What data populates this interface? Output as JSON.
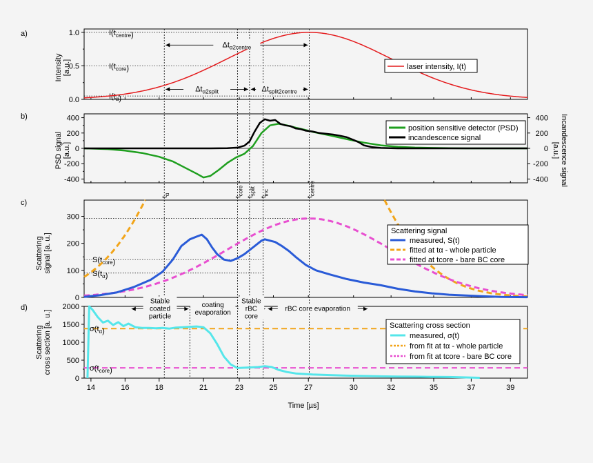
{
  "figure": {
    "background": "#f4f4f4",
    "x_axis": {
      "label": "Time [µs]",
      "range": [
        13.6,
        39.6
      ],
      "ticks": [
        "14",
        "16",
        "18",
        "21",
        "23",
        "25",
        "27",
        "30",
        "32",
        "35",
        "37",
        "39"
      ],
      "tick_values": [
        14,
        16,
        18,
        20.6,
        22.7,
        24.7,
        26.75,
        29.4,
        31.6,
        34.1,
        36.3,
        38.6
      ]
    }
  },
  "chart_data": [
    {
      "panel_letter": "a)",
      "type": "line",
      "ylabel": [
        "Intensity",
        "[a.u.]"
      ],
      "ylim": [
        0,
        1.05
      ],
      "yticks": [
        "0.0",
        "0.5",
        "1.0"
      ],
      "ytick_values": [
        0,
        0.5,
        1.0
      ],
      "legend": "laser intensity,  I(t)",
      "colors": {
        "laser": "#e41a1c"
      },
      "series": [
        {
          "name": "laser intensity,  I(t)",
          "kind": "gaussian",
          "center": 26.8,
          "sigma": 4.8,
          "amplitude": 1.0
        }
      ],
      "reference_levels": [
        {
          "label": "I(t",
          "sub": "centre",
          "value": 1.0
        },
        {
          "label": "I(t",
          "sub": "core",
          "value": 0.5
        },
        {
          "label": "I(t",
          "sub": "α",
          "value": 0.05
        }
      ],
      "annotations": [
        {
          "text": "Δt",
          "sub": "α2centre",
          "from": 18.3,
          "to": 26.8
        },
        {
          "text": "Δt",
          "sub": "α2split",
          "from": 18.3,
          "to": 23.3
        },
        {
          "text": "Δt",
          "sub": "split2centre",
          "from": 23.3,
          "to": 26.8
        }
      ]
    },
    {
      "panel_letter": "b)",
      "type": "line",
      "ylabel": [
        "PSD signal",
        "[a.u.]"
      ],
      "ylabel_right": [
        "Incandescence signal",
        "[a.u.]"
      ],
      "ylim": [
        -450,
        450
      ],
      "yticks": [
        "-400",
        "-200",
        "0",
        "200",
        "400"
      ],
      "ytick_values": [
        -400,
        -200,
        0,
        200,
        400
      ],
      "colors": {
        "psd": "#1f9f1f",
        "incandescence": "#000000"
      },
      "series": [
        {
          "name": "position sensitive detector (PSD)",
          "x": [
            13.6,
            15,
            16,
            17,
            18,
            18.8,
            19.5,
            20.2,
            20.6,
            21,
            21.5,
            22,
            22.5,
            23,
            23.5,
            24,
            24.5,
            25,
            25.5,
            26,
            26.5,
            27,
            28,
            29,
            30,
            31,
            32,
            33,
            34,
            35,
            36,
            37,
            38,
            39.6
          ],
          "y": [
            0,
            -10,
            -30,
            -60,
            -110,
            -170,
            -250,
            -330,
            -380,
            -360,
            -280,
            -190,
            -120,
            -70,
            30,
            200,
            300,
            320,
            300,
            270,
            245,
            215,
            170,
            120,
            75,
            40,
            20,
            10,
            5,
            2,
            0,
            0,
            0,
            0
          ]
        },
        {
          "name": "incandescence signal",
          "x": [
            13.6,
            16,
            18,
            20,
            21,
            22,
            22.6,
            23,
            23.3,
            23.6,
            23.9,
            24.2,
            24.5,
            24.8,
            25.1,
            25.4,
            25.7,
            26,
            26.3,
            26.6,
            27,
            27.4,
            27.8,
            28.2,
            28.6,
            29,
            29.4,
            29.7,
            30,
            30.5,
            31,
            32,
            34,
            36,
            39.6
          ],
          "y": [
            0,
            0,
            0,
            0,
            0,
            2,
            10,
            35,
            90,
            220,
            330,
            380,
            360,
            370,
            320,
            300,
            290,
            260,
            250,
            230,
            220,
            200,
            190,
            180,
            165,
            145,
            110,
            80,
            40,
            15,
            5,
            0,
            0,
            0,
            0
          ]
        }
      ]
    },
    {
      "panel_letter": "c)",
      "type": "line",
      "ylabel": [
        "Scattering",
        "signal [a. u.]"
      ],
      "ylim": [
        0,
        360
      ],
      "yticks": [
        "0",
        "100",
        "200",
        "300"
      ],
      "ytick_values": [
        0,
        100,
        200,
        300
      ],
      "legend_title": "Scattering signal",
      "colors": {
        "measured": "#2a5bd7",
        "fit_alpha": "#f2a51a",
        "fit_core": "#e84fd0"
      },
      "series": [
        {
          "name": "measured, S(t)",
          "x": [
            13.6,
            14.5,
            15.5,
            16.5,
            17.5,
            18.2,
            18.8,
            19.3,
            19.8,
            20.2,
            20.5,
            20.8,
            21.1,
            21.4,
            21.8,
            22.2,
            22.6,
            23,
            23.4,
            23.8,
            24,
            24.2,
            24.5,
            24.8,
            25.2,
            25.6,
            26,
            26.6,
            27.2,
            28,
            29,
            30,
            31,
            32,
            33,
            34,
            35,
            36,
            37,
            38,
            39.6
          ],
          "y": [
            2,
            8,
            18,
            38,
            65,
            95,
            140,
            190,
            215,
            225,
            232,
            215,
            185,
            160,
            140,
            135,
            145,
            160,
            180,
            200,
            210,
            215,
            210,
            205,
            190,
            172,
            150,
            120,
            100,
            85,
            68,
            55,
            45,
            32,
            22,
            15,
            10,
            7,
            4,
            2,
            1
          ]
        },
        {
          "name": "fitted at tα  -  whole particle",
          "kind": "gaussian",
          "center": 24.2,
          "sigma": 4.5,
          "amplitude": 1215,
          "dashed": true
        },
        {
          "name": "fitted at tcore  - bare BC core",
          "kind": "gaussian",
          "center": 26.8,
          "sigma": 4.8,
          "amplitude": 292,
          "dashed": true
        }
      ],
      "reference_levels": [
        {
          "label": "S(t",
          "sub": "core",
          "value": 140
        },
        {
          "label": "S(t",
          "sub": "α",
          "value": 90
        },
        {
          "label": "",
          "sub": "",
          "value": 292
        }
      ]
    },
    {
      "panel_letter": "d)",
      "type": "line",
      "ylabel": [
        "Scattering",
        "cross section [a. u.]"
      ],
      "ylim": [
        0,
        2000
      ],
      "yticks": [
        "0",
        "500",
        "1000",
        "1500",
        "2000"
      ],
      "ytick_values": [
        0,
        500,
        1000,
        1500,
        2000
      ],
      "legend_title": "Scattering cross section",
      "colors": {
        "measured": "#55e6ea",
        "fit_alpha": "#f2a51a",
        "fit_core": "#e84fd0"
      },
      "series": [
        {
          "name": "measured, σ(t)",
          "x": [
            13.8,
            13.9,
            14.1,
            14.4,
            14.7,
            15.0,
            15.3,
            15.6,
            15.9,
            16.2,
            16.6,
            17.0,
            17.4,
            17.8,
            18.2,
            18.6,
            19.0,
            19.4,
            19.8,
            20.2,
            20.6,
            21,
            21.4,
            21.8,
            22.2,
            22.6,
            23,
            23.4,
            23.8,
            24.2,
            24.6,
            25,
            25.5,
            26,
            27,
            28,
            29,
            30,
            31,
            32,
            33,
            34,
            35,
            36,
            36.8
          ],
          "y": [
            0,
            2000,
            1900,
            1700,
            1550,
            1600,
            1480,
            1560,
            1450,
            1520,
            1420,
            1400,
            1400,
            1390,
            1400,
            1380,
            1410,
            1420,
            1430,
            1440,
            1420,
            1250,
            950,
            600,
            380,
            280,
            290,
            300,
            310,
            330,
            310,
            230,
            170,
            130,
            100,
            85,
            70,
            60,
            50,
            45,
            40,
            35,
            30,
            20,
            10
          ]
        },
        {
          "name": "from fit at tα - whole particle",
          "kind": "constant",
          "value": 1380,
          "dashed": true
        },
        {
          "name": "from fit at tcore - bare BC core",
          "kind": "constant",
          "value": 285,
          "dashed": true
        }
      ],
      "reference_levels": [
        {
          "label": "σ(t",
          "sub": "α",
          "value": 1380
        },
        {
          "label": "σ(t",
          "sub": "core",
          "value": 285
        }
      ],
      "phase_labels": [
        {
          "lines": [
            "Stable",
            "coated",
            "particle"
          ],
          "from": 16.3,
          "to": 19.8
        },
        {
          "lines": [
            "coating",
            "evaporation"
          ],
          "from": 19.8,
          "to": 22.5
        },
        {
          "lines": [
            "Stable",
            "rBC",
            "core"
          ],
          "from": 22.5,
          "to": 24.3
        },
        {
          "lines": [
            "rBC core evaporation"
          ],
          "from": 24.3,
          "to": 30.3
        }
      ]
    }
  ],
  "markers": [
    {
      "name": "t",
      "sub": "α",
      "x": 18.3
    },
    {
      "name": "t",
      "sub": "core",
      "x": 22.6
    },
    {
      "name": "t",
      "sub": "split",
      "x": 23.3
    },
    {
      "name": "t",
      "sub": "inc",
      "x": 24.1
    },
    {
      "name": "t",
      "sub": "centre",
      "x": 26.8
    }
  ],
  "extra_guides_d": [
    19.8
  ]
}
